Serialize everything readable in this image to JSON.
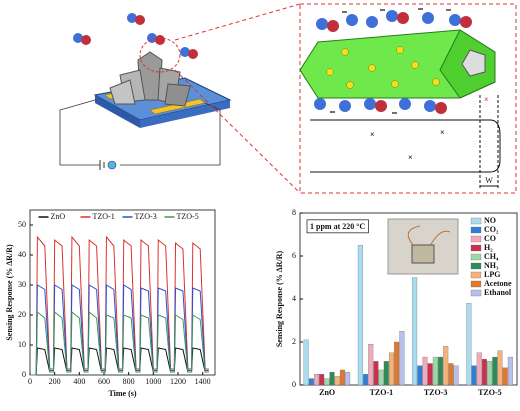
{
  "chart_data": [
    {
      "type": "line",
      "xlabel": "Time (s)",
      "ylabel": "Sensing Response (% ΔR/R)",
      "x": [
        0,
        50,
        60,
        120,
        160,
        190,
        200,
        260,
        300,
        330,
        340,
        400,
        440,
        470,
        480,
        540,
        580,
        610,
        620,
        680,
        720,
        750,
        760,
        820,
        860,
        890,
        900,
        960,
        1000,
        1030,
        1040,
        1100,
        1140,
        1170,
        1180,
        1240,
        1280,
        1310,
        1320,
        1380,
        1420,
        1450
      ],
      "series": [
        {
          "name": "ZnO",
          "color": "#111111",
          "values": [
            0,
            0,
            9,
            8.5,
            1,
            1,
            9,
            8.5,
            1,
            1,
            9,
            8.5,
            1,
            1,
            9,
            8.5,
            1,
            1,
            9,
            8.5,
            1,
            1,
            9,
            8.5,
            1,
            1,
            9,
            8.5,
            1,
            1,
            9,
            8.5,
            1,
            1,
            9,
            8.5,
            1,
            1,
            9,
            8.5,
            1,
            1
          ]
        },
        {
          "name": "TZO-1",
          "color": "#d9342b",
          "values": [
            0,
            0,
            46,
            43,
            2,
            2,
            45,
            43,
            2,
            2,
            46,
            43,
            2,
            2,
            45,
            43,
            2,
            2,
            46,
            43,
            2,
            2,
            45,
            43,
            2,
            2,
            45,
            43,
            2,
            2,
            45,
            43,
            2,
            2,
            44,
            42,
            2,
            2,
            44,
            42,
            2,
            2
          ]
        },
        {
          "name": "TZO-3",
          "color": "#2c4fd6",
          "values": [
            0,
            0,
            30,
            28.5,
            1.5,
            1.5,
            30,
            28.5,
            1.5,
            1.5,
            30,
            28.5,
            1.5,
            1.5,
            30,
            28.5,
            1.5,
            1.5,
            30,
            28.5,
            1.5,
            1.5,
            30,
            28.5,
            1.5,
            1.5,
            29,
            28,
            1.5,
            1.5,
            29,
            28,
            1.5,
            1.5,
            29,
            28,
            1.5,
            1.5,
            29,
            28,
            1.5,
            1.5
          ]
        },
        {
          "name": "TZO-5",
          "color": "#3a9a5a",
          "values": [
            0,
            0,
            21,
            19,
            1,
            1,
            21,
            19,
            1,
            1,
            21,
            19,
            1,
            1,
            21,
            19,
            1,
            1,
            20,
            19,
            1,
            1,
            20,
            19,
            1,
            1,
            20,
            19,
            1,
            1,
            20,
            19,
            1,
            1,
            20,
            18.5,
            1,
            1,
            20,
            18.5,
            1,
            1
          ]
        }
      ],
      "xlim": [
        0,
        1500
      ],
      "xticks": [
        0,
        200,
        400,
        600,
        800,
        1000,
        1200,
        1400
      ],
      "ylim": [
        0,
        55
      ],
      "yticks": [
        0,
        10,
        20,
        30,
        40,
        50
      ],
      "legend": "upper center"
    },
    {
      "type": "bar",
      "ylabel": "Sensing Response (% ΔR/R)",
      "annotation": "1 ppm at 220 °C",
      "categories": [
        "ZnO",
        "TZO-1",
        "TZO-3",
        "TZO-5"
      ],
      "series": [
        {
          "name": "NO",
          "color": "#a9dcef",
          "values": [
            2.1,
            6.5,
            5.0,
            3.8
          ]
        },
        {
          "name": "CO₂",
          "color": "#2f7fd6",
          "values": [
            0.3,
            0.5,
            0.9,
            0.9
          ]
        },
        {
          "name": "CO",
          "color": "#f2a9bb",
          "values": [
            0.5,
            1.9,
            1.3,
            1.5
          ]
        },
        {
          "name": "H₂",
          "color": "#c8324e",
          "values": [
            0.5,
            1.1,
            1.0,
            1.2
          ]
        },
        {
          "name": "CH₄",
          "color": "#9ed8a6",
          "values": [
            0.3,
            0.7,
            1.3,
            1.1
          ]
        },
        {
          "name": "NH₃",
          "color": "#2e8b57",
          "values": [
            0.6,
            1.1,
            1.3,
            1.3
          ]
        },
        {
          "name": "LPG",
          "color": "#f6b27a",
          "values": [
            0.4,
            1.5,
            1.8,
            1.6
          ]
        },
        {
          "name": "Acetone",
          "color": "#e0782e",
          "values": [
            0.7,
            2.0,
            1.0,
            0.8
          ]
        },
        {
          "name": "Ethanol",
          "color": "#b9bfec",
          "values": [
            0.6,
            2.5,
            0.9,
            1.3
          ]
        }
      ],
      "ylim": [
        0,
        8
      ],
      "yticks": [
        0,
        2,
        4,
        6,
        8
      ],
      "legend": "upper right"
    }
  ],
  "schematic": {
    "width_label": "W"
  }
}
